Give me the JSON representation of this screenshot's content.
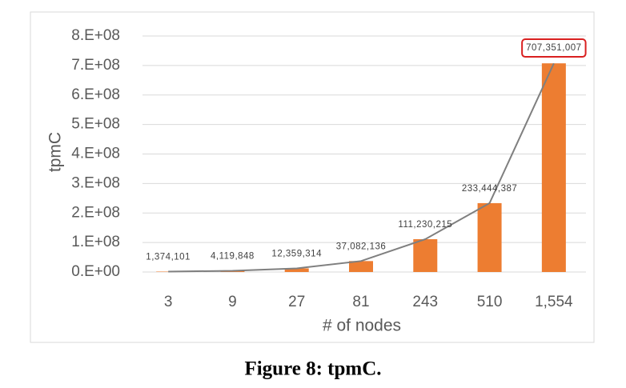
{
  "chart_data": {
    "type": "bar",
    "y_label": "tpmC",
    "x_label": "# of nodes",
    "categories": [
      "3",
      "9",
      "27",
      "81",
      "243",
      "510",
      "1,554"
    ],
    "values": [
      1374101,
      4119848,
      12359314,
      37082136,
      111230215,
      233444387,
      707351007
    ],
    "value_labels": [
      "1,374,101",
      "4,119,848",
      "12,359,314",
      "37,082,136",
      "111,230,215",
      "233,444,387",
      "707,351,007"
    ],
    "color": "#ed7d31",
    "line": true,
    "line_color": "#7f7f7f",
    "highlight_index": 6,
    "highlight_color": "#d92020",
    "ylim": [
      0,
      800000000
    ],
    "yticks": [
      {
        "value": 0,
        "label": "0.E+00"
      },
      {
        "value": 100000000,
        "label": "1.E+08"
      },
      {
        "value": 200000000,
        "label": "2.E+08"
      },
      {
        "value": 300000000,
        "label": "3.E+08"
      },
      {
        "value": 400000000,
        "label": "4.E+08"
      },
      {
        "value": 500000000,
        "label": "5.E+08"
      },
      {
        "value": 600000000,
        "label": "6.E+08"
      },
      {
        "value": 700000000,
        "label": "7.E+08"
      },
      {
        "value": 800000000,
        "label": "8.E+08"
      }
    ],
    "grid": true
  },
  "caption": "Figure 8: tpmC."
}
